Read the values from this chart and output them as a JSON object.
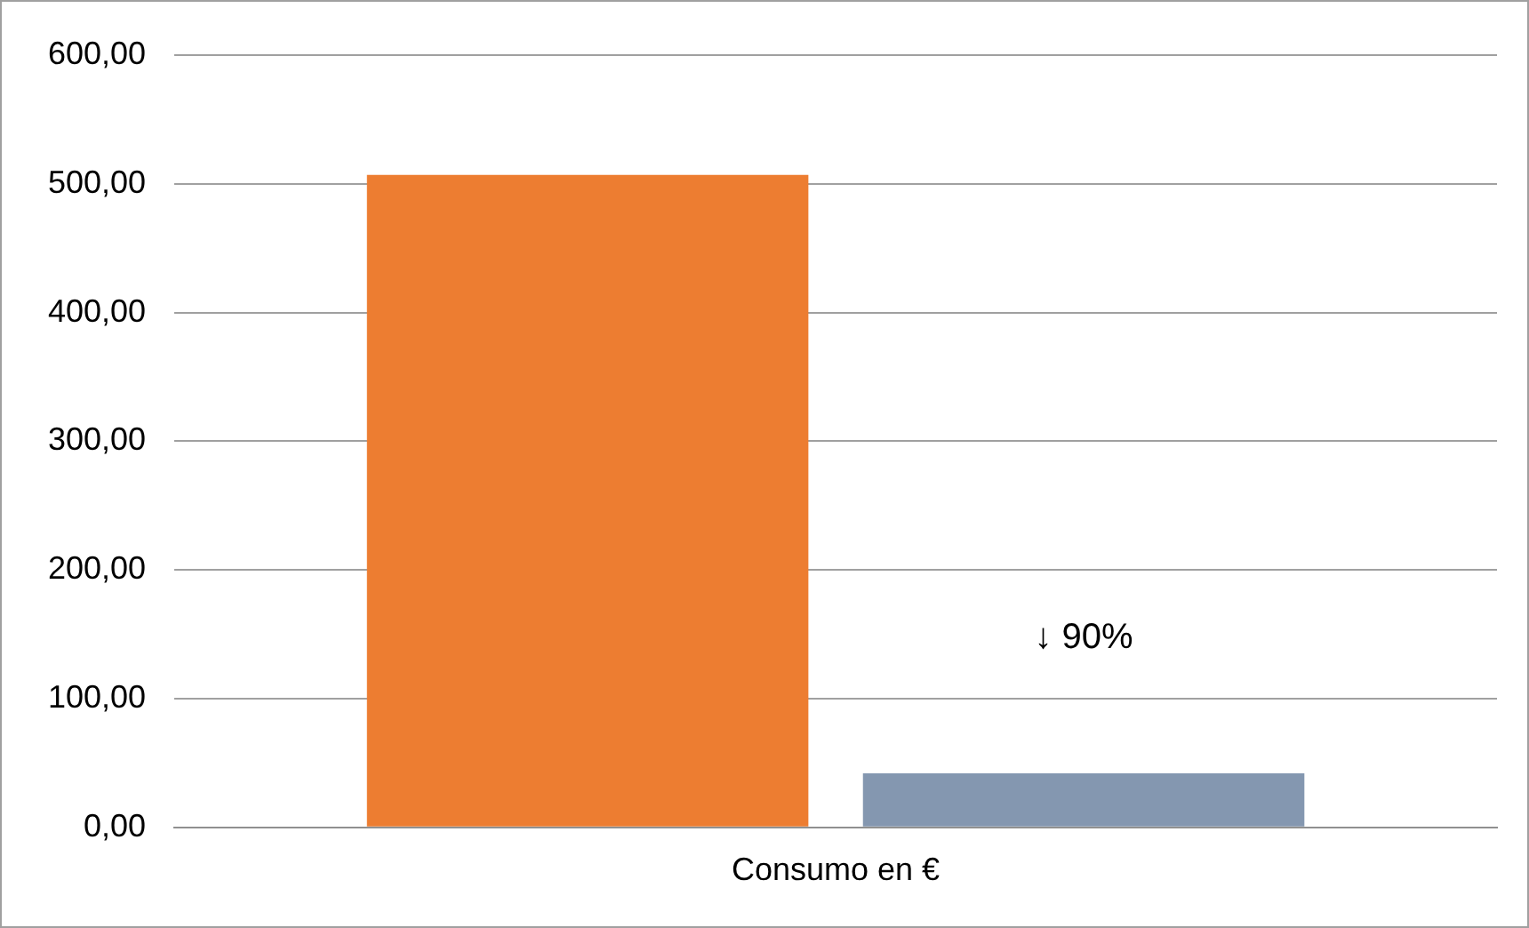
{
  "chart_data": {
    "type": "bar",
    "categories": [
      "Consumo en €"
    ],
    "series": [
      {
        "color": "#ed7d31",
        "values": [
          507
        ]
      },
      {
        "color": "#8497b0",
        "values": [
          42
        ]
      }
    ],
    "ylim": [
      0,
      600
    ],
    "yticks": [
      {
        "value": 0,
        "label": "0,00"
      },
      {
        "value": 100,
        "label": "100,00"
      },
      {
        "value": 200,
        "label": "200,00"
      },
      {
        "value": 300,
        "label": "300,00"
      },
      {
        "value": 400,
        "label": "400,00"
      },
      {
        "value": 500,
        "label": "500,00"
      },
      {
        "value": 600,
        "label": "600,00"
      }
    ],
    "grid": "y",
    "legend": false,
    "annotations": [
      "↓ 90%"
    ]
  }
}
